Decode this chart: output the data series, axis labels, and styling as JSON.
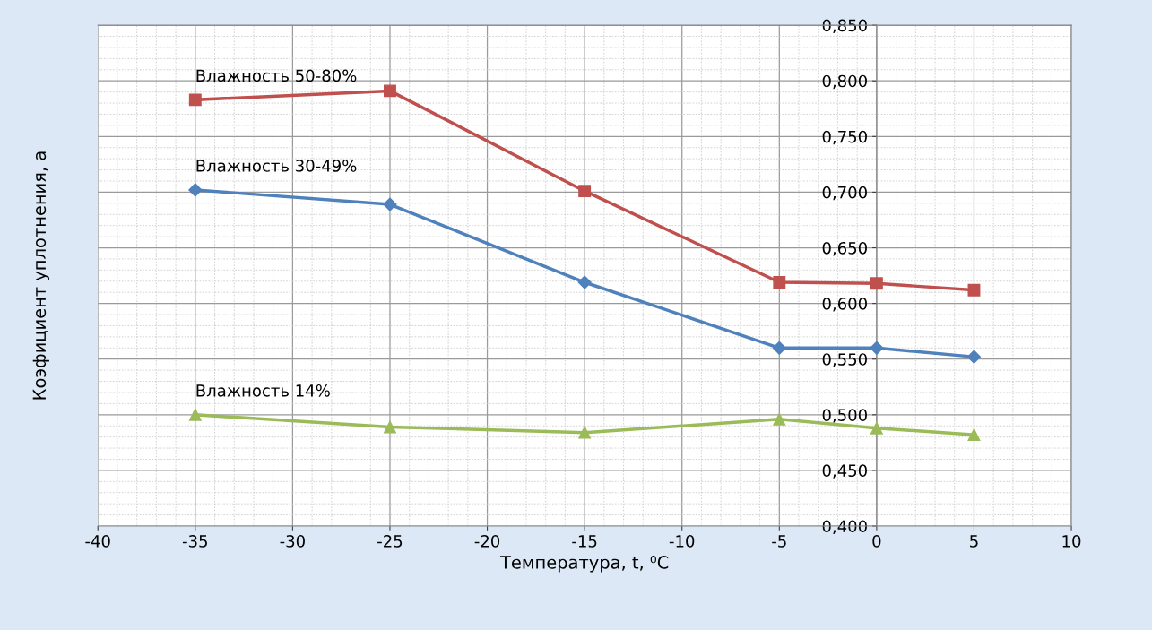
{
  "chart_data": {
    "type": "line",
    "xlabel": "Температура, t, ⁰C",
    "ylabel": "Коэфициент уплотнения, а",
    "x": [
      -35,
      -25,
      -15,
      -5,
      0,
      5
    ],
    "series": [
      {
        "name": "Влажность 50-80%",
        "color": "#c0504d",
        "marker": "square",
        "values": [
          0.783,
          0.791,
          0.701,
          0.619,
          0.618,
          0.612
        ]
      },
      {
        "name": "Влажность 30-49%",
        "color": "#4f81bd",
        "marker": "diamond",
        "values": [
          0.702,
          0.689,
          0.619,
          0.56,
          0.56,
          0.552
        ]
      },
      {
        "name": "Влажность 14%",
        "color": "#9bbb59",
        "marker": "triangle",
        "values": [
          0.5,
          0.489,
          0.484,
          0.496,
          0.488,
          0.482
        ]
      }
    ],
    "xlim": [
      -40,
      10
    ],
    "xticks": [
      -40,
      -35,
      -30,
      -25,
      -20,
      -15,
      -10,
      -5,
      0,
      5,
      10
    ],
    "ylim": [
      0.4,
      0.85
    ],
    "yticks": [
      {
        "value": 0.4,
        "label": "0,400"
      },
      {
        "value": 0.45,
        "label": "0,450"
      },
      {
        "value": 0.5,
        "label": "0,500"
      },
      {
        "value": 0.55,
        "label": "0,550"
      },
      {
        "value": 0.6,
        "label": "0,600"
      },
      {
        "value": 0.65,
        "label": "0,650"
      },
      {
        "value": 0.7,
        "label": "0,700"
      },
      {
        "value": 0.75,
        "label": "0,750"
      },
      {
        "value": 0.8,
        "label": "0,800"
      },
      {
        "value": 0.85,
        "label": "0,850"
      }
    ],
    "grid": true,
    "legend": false,
    "line_style": "solid"
  }
}
